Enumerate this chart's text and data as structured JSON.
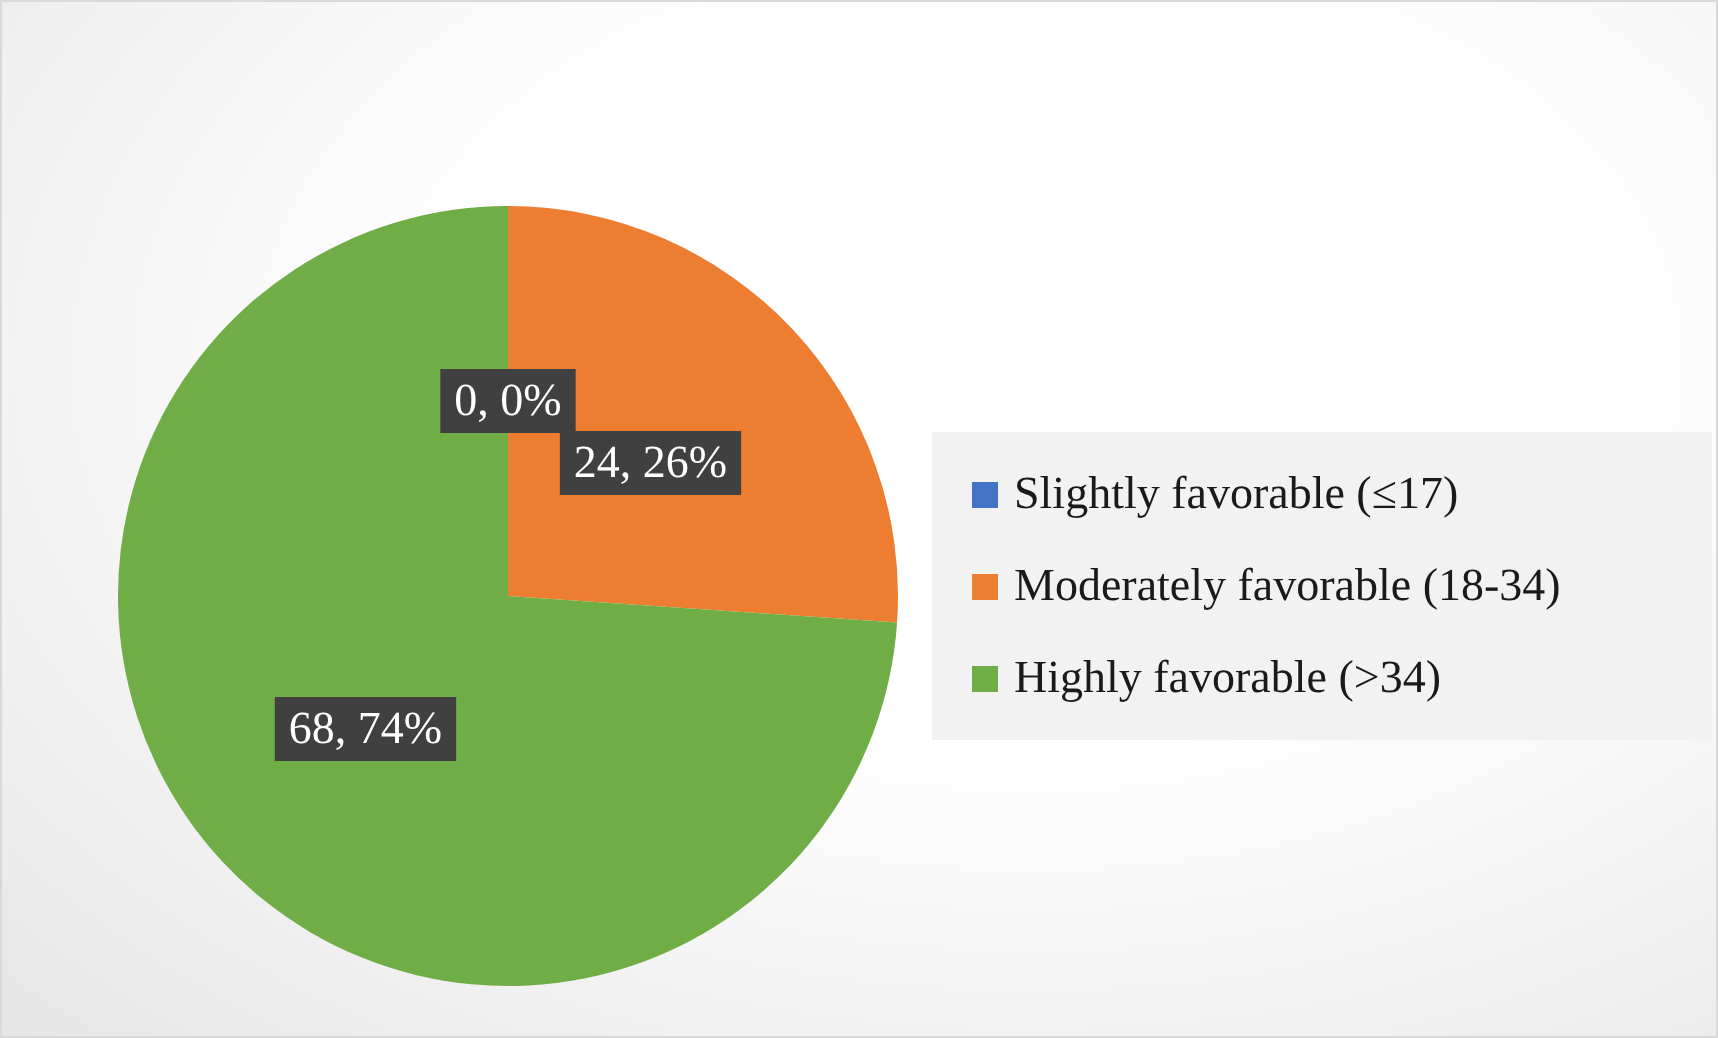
{
  "chart_data": {
    "type": "pie",
    "categories": [
      "Slightly favorable (≤17)",
      "Moderately favorable (18-34)",
      "Highly favorable (>34)"
    ],
    "values": [
      0,
      24,
      68
    ],
    "colors": [
      "#4472c4",
      "#ed7d31",
      "#70ad47"
    ],
    "value_labels": [
      "0, 0%",
      "24, 26%",
      "68, 74%"
    ],
    "legend": "right"
  }
}
